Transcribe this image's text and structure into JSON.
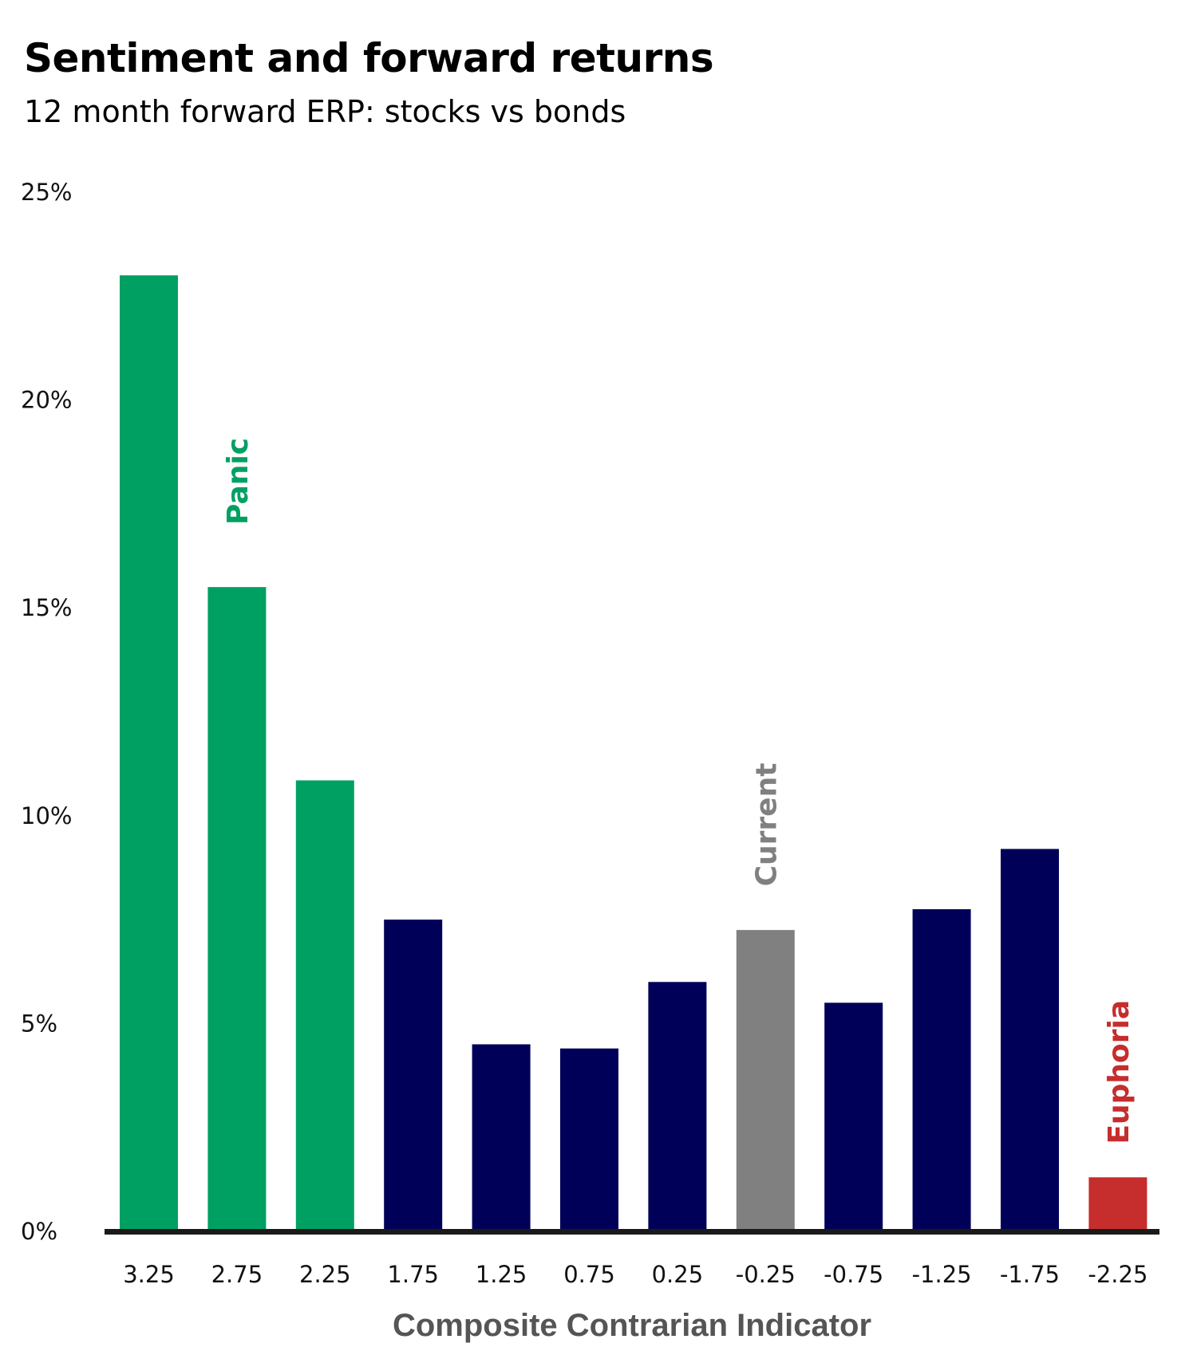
{
  "chart_data": {
    "type": "bar",
    "title": "Sentiment and forward returns",
    "subtitle": "12 month forward ERP: stocks vs bonds",
    "xlabel": "Composite Contrarian Indicator",
    "ylabel": "",
    "categories": [
      "3.25",
      "2.75",
      "2.25",
      "1.75",
      "1.25",
      "0.75",
      "0.25",
      "-0.25",
      "-0.75",
      "-1.25",
      "-1.75",
      "-2.25"
    ],
    "values": [
      23.0,
      15.5,
      10.85,
      7.5,
      4.5,
      4.4,
      6.0,
      7.25,
      5.5,
      7.75,
      9.2,
      1.3
    ],
    "bar_colors": [
      "#00A063",
      "#00A063",
      "#00A063",
      "#000058",
      "#000058",
      "#000058",
      "#000058",
      "#808080",
      "#000058",
      "#000058",
      "#000058",
      "#C62D2D"
    ],
    "ylim": [
      0,
      25
    ],
    "yticks": [
      0,
      5,
      10,
      15,
      20,
      25
    ],
    "ytick_labels": [
      "0%",
      "5%",
      "10%",
      "15%",
      "20%",
      "25%"
    ],
    "grid": false,
    "annotations": [
      {
        "text": "Panic",
        "category": "2.75",
        "value": 17,
        "color": "#00A063"
      },
      {
        "text": "Current",
        "category": "-0.25",
        "value": 8.3,
        "color": "#808080"
      },
      {
        "text": "Euphoria",
        "category": "-2.25",
        "value": 2.1,
        "color": "#C62D2D"
      }
    ]
  }
}
